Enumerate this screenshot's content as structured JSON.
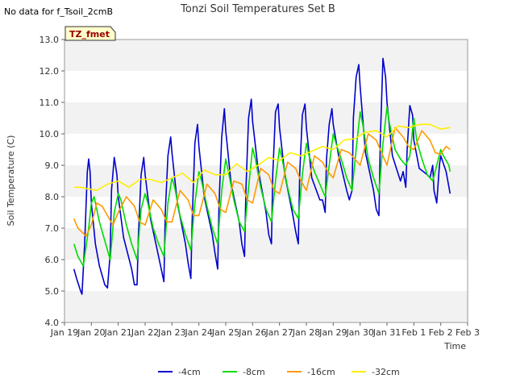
{
  "header": {
    "note": "No data for f_Tsoil_2cmB",
    "title": "Tonzi Soil Temperatures Set B"
  },
  "chart_data": {
    "type": "line",
    "title": "Tonzi Soil Temperatures Set B",
    "xlabel": "Time",
    "ylabel": "Soil Temperature (C)",
    "ylim": [
      4.0,
      13.0
    ],
    "yticks": [
      "4.0",
      "5.0",
      "6.0",
      "7.0",
      "8.0",
      "9.0",
      "10.0",
      "11.0",
      "12.0",
      "13.0"
    ],
    "xlim": [
      0,
      15
    ],
    "xticks": [
      "Jan 19",
      "Jan 20",
      "Jan 21",
      "Jan 22",
      "Jan 23",
      "Jan 24",
      "Jan 25",
      "Jan 26",
      "Jan 27",
      "Jan 28",
      "Jan 29",
      "Jan 30",
      "Jan 31",
      "Feb 1",
      "Feb 2",
      "Feb 3"
    ],
    "x_unit": "days since Jan 19",
    "grid": "horizontal bands",
    "badge": "TZ_fmet",
    "legend_position": "bottom",
    "series": [
      {
        "name": "-4cm",
        "color": "#0000cc",
        "x": [
          0.35,
          0.45,
          0.6,
          0.65,
          0.75,
          0.85,
          0.9,
          0.95,
          1.0,
          1.15,
          1.3,
          1.5,
          1.6,
          1.7,
          1.75,
          1.85,
          1.95,
          2.0,
          2.2,
          2.5,
          2.6,
          2.7,
          2.75,
          2.85,
          2.95,
          3.0,
          3.2,
          3.5,
          3.6,
          3.7,
          3.75,
          3.85,
          3.95,
          4.0,
          4.2,
          4.5,
          4.6,
          4.7,
          4.75,
          4.85,
          4.95,
          5.0,
          5.2,
          5.5,
          5.6,
          5.7,
          5.75,
          5.85,
          5.95,
          6.0,
          6.2,
          6.5,
          6.6,
          6.7,
          6.75,
          6.85,
          6.95,
          7.0,
          7.2,
          7.5,
          7.6,
          7.7,
          7.75,
          7.85,
          7.95,
          8.0,
          8.2,
          8.5,
          8.6,
          8.7,
          8.75,
          8.85,
          8.95,
          9.0,
          9.2,
          9.5,
          9.6,
          9.7,
          9.75,
          9.85,
          9.95,
          10.0,
          10.2,
          10.5,
          10.6,
          10.7,
          10.75,
          10.85,
          10.95,
          11.0,
          11.2,
          11.5,
          11.6,
          11.7,
          11.75,
          11.85,
          11.95,
          12.0,
          12.2,
          12.5,
          12.6,
          12.7,
          12.75,
          12.85,
          12.95,
          13.0,
          13.2,
          13.5,
          13.6,
          13.7,
          13.75,
          13.85,
          13.95,
          14.0,
          14.2,
          14.35
        ],
        "y": [
          5.7,
          5.4,
          5.0,
          4.9,
          6.5,
          8.8,
          9.2,
          8.8,
          7.8,
          6.5,
          5.8,
          5.2,
          5.1,
          6.2,
          8.2,
          9.25,
          8.7,
          8.0,
          6.7,
          5.7,
          5.2,
          5.2,
          6.8,
          8.7,
          9.25,
          8.7,
          7.3,
          6.1,
          5.7,
          5.3,
          7.5,
          9.3,
          9.9,
          9.4,
          7.8,
          6.5,
          5.9,
          5.4,
          7.2,
          9.7,
          10.3,
          9.6,
          8.0,
          6.8,
          6.2,
          5.7,
          7.8,
          9.9,
          10.8,
          10.1,
          8.4,
          7.2,
          6.5,
          6.1,
          8.2,
          10.5,
          11.1,
          10.4,
          8.9,
          7.5,
          6.8,
          6.5,
          8.7,
          10.7,
          10.95,
          10.2,
          8.7,
          7.4,
          6.9,
          6.5,
          8.7,
          10.6,
          10.95,
          10.2,
          8.6,
          7.9,
          7.9,
          7.5,
          9.2,
          10.3,
          10.8,
          10.3,
          9.3,
          8.2,
          7.9,
          8.2,
          10.5,
          11.8,
          12.2,
          11.5,
          9.4,
          8.2,
          7.6,
          7.4,
          9.8,
          12.4,
          11.8,
          11.0,
          9.3,
          8.5,
          8.8,
          8.3,
          9.5,
          10.9,
          10.6,
          9.8,
          8.9,
          8.7,
          8.6,
          9.0,
          8.2,
          7.8,
          9.0,
          9.3,
          8.8,
          8.1
        ]
      },
      {
        "name": "-8cm",
        "color": "#00dd00",
        "x": [
          0.35,
          0.5,
          0.7,
          0.9,
          1.0,
          1.1,
          1.3,
          1.5,
          1.7,
          1.85,
          2.0,
          2.1,
          2.3,
          2.5,
          2.7,
          2.85,
          3.0,
          3.1,
          3.3,
          3.5,
          3.7,
          3.85,
          4.0,
          4.1,
          4.3,
          4.5,
          4.7,
          4.85,
          5.0,
          5.1,
          5.3,
          5.5,
          5.7,
          5.85,
          6.0,
          6.1,
          6.3,
          6.5,
          6.7,
          6.85,
          7.0,
          7.1,
          7.3,
          7.5,
          7.7,
          7.85,
          8.0,
          8.1,
          8.3,
          8.5,
          8.7,
          8.85,
          9.0,
          9.1,
          9.3,
          9.5,
          9.7,
          9.85,
          10.0,
          10.1,
          10.3,
          10.5,
          10.7,
          10.85,
          11.0,
          11.1,
          11.3,
          11.5,
          11.7,
          11.85,
          12.0,
          12.1,
          12.3,
          12.5,
          12.7,
          12.85,
          13.0,
          13.1,
          13.3,
          13.5,
          13.7,
          13.85,
          14.0,
          14.1,
          14.3,
          14.35
        ],
        "y": [
          6.5,
          6.1,
          5.8,
          7.0,
          7.8,
          8.0,
          7.2,
          6.6,
          6.0,
          7.5,
          8.1,
          7.9,
          7.1,
          6.5,
          6.0,
          7.6,
          8.1,
          7.8,
          7.0,
          6.5,
          6.1,
          7.8,
          8.6,
          8.3,
          7.4,
          6.8,
          6.3,
          7.8,
          8.8,
          8.5,
          7.7,
          7.0,
          6.5,
          8.2,
          9.2,
          8.8,
          7.9,
          7.2,
          6.9,
          8.3,
          9.55,
          9.2,
          8.3,
          7.6,
          7.2,
          8.5,
          9.55,
          9.2,
          8.3,
          7.6,
          7.3,
          8.7,
          9.7,
          9.3,
          8.8,
          8.4,
          8.0,
          9.0,
          10.0,
          9.7,
          9.2,
          8.6,
          8.2,
          9.5,
          10.7,
          10.3,
          9.2,
          8.6,
          8.1,
          9.7,
          10.85,
          10.3,
          9.5,
          9.2,
          9.0,
          9.3,
          10.5,
          9.8,
          9.2,
          8.7,
          8.5,
          9.0,
          9.5,
          9.3,
          9.0,
          8.8
        ]
      },
      {
        "name": "-16cm",
        "color": "#ff9900",
        "x": [
          0.35,
          0.5,
          0.8,
          1.0,
          1.2,
          1.4,
          1.6,
          1.8,
          2.0,
          2.3,
          2.6,
          2.8,
          3.0,
          3.3,
          3.6,
          3.8,
          4.0,
          4.3,
          4.6,
          4.8,
          5.0,
          5.3,
          5.6,
          5.8,
          6.0,
          6.3,
          6.6,
          6.8,
          7.0,
          7.3,
          7.6,
          7.8,
          8.0,
          8.3,
          8.6,
          8.8,
          9.0,
          9.3,
          9.6,
          9.8,
          10.0,
          10.3,
          10.6,
          10.8,
          11.0,
          11.3,
          11.6,
          11.8,
          12.0,
          12.3,
          12.6,
          12.8,
          13.0,
          13.3,
          13.6,
          13.8,
          14.0,
          14.2,
          14.35
        ],
        "y": [
          7.3,
          7.0,
          6.75,
          7.1,
          7.8,
          7.7,
          7.4,
          7.1,
          7.5,
          8.0,
          7.7,
          7.2,
          7.1,
          7.9,
          7.6,
          7.2,
          7.2,
          8.2,
          7.9,
          7.4,
          7.4,
          8.4,
          8.1,
          7.6,
          7.5,
          8.5,
          8.4,
          7.9,
          7.8,
          8.9,
          8.7,
          8.2,
          8.1,
          9.1,
          8.9,
          8.5,
          8.2,
          9.3,
          9.1,
          8.8,
          8.6,
          9.5,
          9.4,
          9.2,
          9.0,
          10.0,
          9.8,
          9.4,
          9.0,
          10.2,
          9.9,
          9.6,
          9.5,
          10.1,
          9.8,
          9.4,
          9.35,
          9.6,
          9.5
        ]
      },
      {
        "name": "-32cm",
        "color": "#ffee00",
        "x": [
          0.35,
          0.6,
          0.9,
          1.2,
          1.6,
          2.0,
          2.4,
          2.8,
          3.2,
          3.6,
          4.0,
          4.4,
          4.8,
          5.2,
          5.6,
          6.0,
          6.4,
          6.8,
          7.2,
          7.6,
          8.0,
          8.4,
          8.8,
          9.2,
          9.6,
          10.0,
          10.4,
          10.8,
          11.2,
          11.6,
          12.0,
          12.4,
          12.8,
          13.2,
          13.6,
          14.0,
          14.35
        ],
        "y": [
          8.3,
          8.3,
          8.25,
          8.2,
          8.4,
          8.5,
          8.3,
          8.55,
          8.55,
          8.45,
          8.6,
          8.75,
          8.45,
          8.85,
          8.7,
          8.7,
          9.05,
          8.8,
          9.0,
          9.25,
          9.15,
          9.4,
          9.3,
          9.45,
          9.6,
          9.5,
          9.8,
          9.85,
          10.05,
          10.1,
          9.9,
          10.25,
          10.2,
          10.3,
          10.3,
          10.15,
          10.2
        ]
      }
    ]
  }
}
